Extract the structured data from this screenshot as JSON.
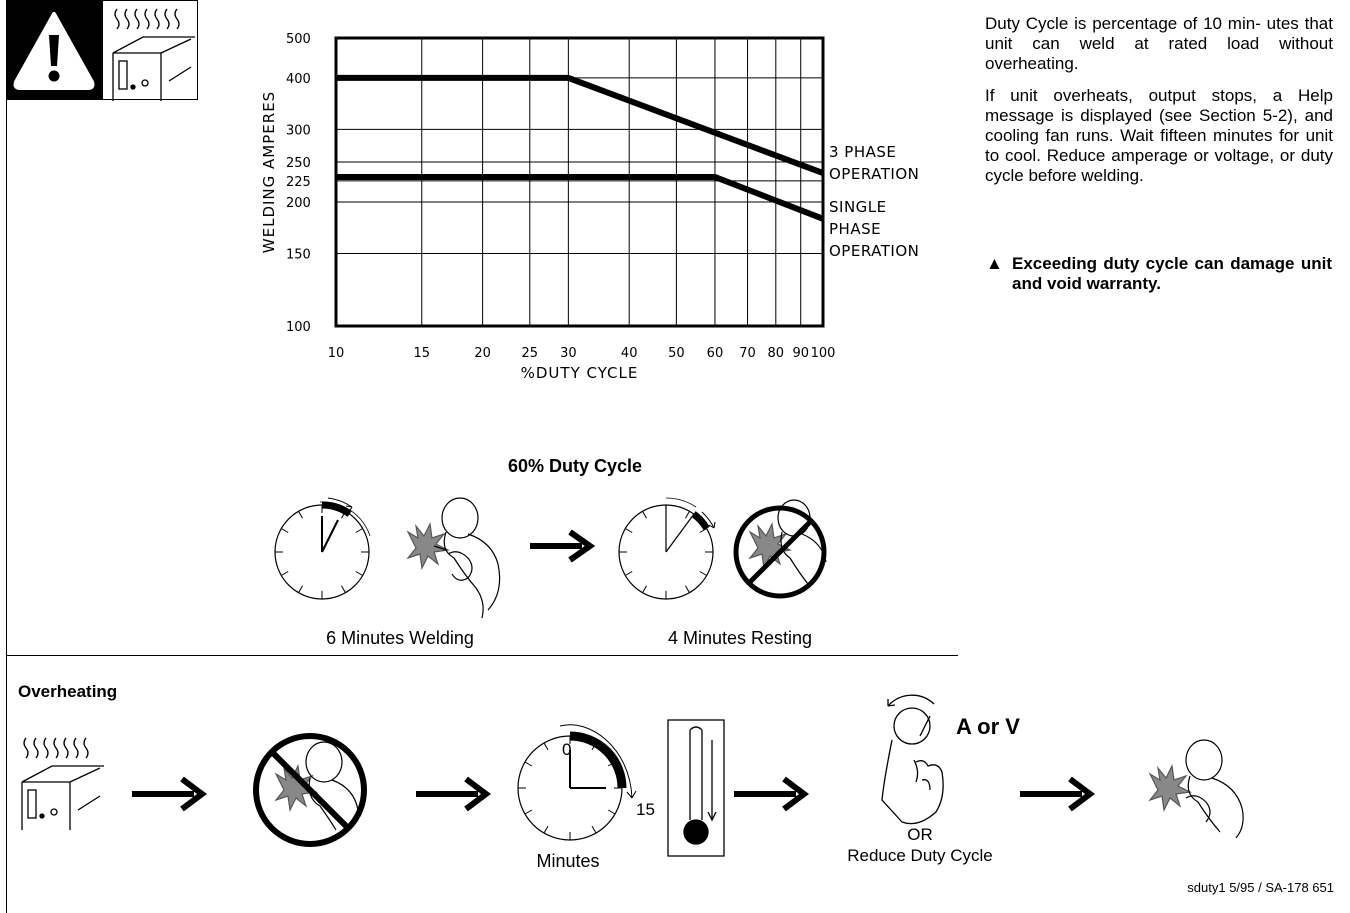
{
  "chart_data": {
    "type": "line",
    "x_scale": "log",
    "y_scale": "log",
    "xlim": [
      10,
      100
    ],
    "ylim": [
      100,
      500
    ],
    "xlabel": "%DUTY CYCLE",
    "ylabel": "WELDING AMPERES",
    "x_ticks": [
      "10",
      "15",
      "20",
      "25",
      "30",
      "40",
      "50",
      "60",
      "70",
      "80",
      "90",
      "100"
    ],
    "x_tick_values": [
      10,
      15,
      20,
      25,
      30,
      40,
      50,
      60,
      70,
      80,
      90,
      100
    ],
    "y_ticks": [
      "100",
      "150",
      "200",
      "225",
      "250",
      "300",
      "400",
      "500"
    ],
    "y_tick_values": [
      100,
      150,
      200,
      225,
      250,
      300,
      400,
      500
    ],
    "grid": true,
    "series": [
      {
        "name": "3 PHASE OPERATION",
        "label_lines": [
          "3 PHASE",
          "OPERATION"
        ],
        "x": [
          10,
          30,
          100
        ],
        "y": [
          400,
          400,
          235
        ]
      },
      {
        "name": "SINGLE PHASE OPERATION",
        "label_lines": [
          "SINGLE",
          "PHASE",
          "OPERATION"
        ],
        "x": [
          10,
          60,
          100
        ],
        "y": [
          230,
          230,
          182
        ]
      }
    ]
  },
  "side": {
    "p1": "Duty Cycle is percentage of 10 min- utes that unit can weld at rated load without overheating.",
    "p2": "If unit overheats, output stops, a Help message is displayed (see Section 5-2), and cooling fan runs. Wait fifteen minutes for unit to cool. Reduce amperage or voltage, or duty cycle before welding.",
    "caution_symbol": "▲",
    "caution": "Exceeding duty cycle can damage unit and void warranty."
  },
  "duty": {
    "title": "60% Duty Cycle",
    "welding_caption": "6 Minutes Welding",
    "resting_caption": "4 Minutes Resting"
  },
  "overheat": {
    "title": "Overheating",
    "timer_start": "0",
    "timer_end": "15",
    "minutes_caption": "Minutes",
    "knob_label": "A or V",
    "or_text": "OR",
    "reduce_text": "Reduce Duty Cycle"
  },
  "footer": "sduty1 5/95 / SA-178 651"
}
